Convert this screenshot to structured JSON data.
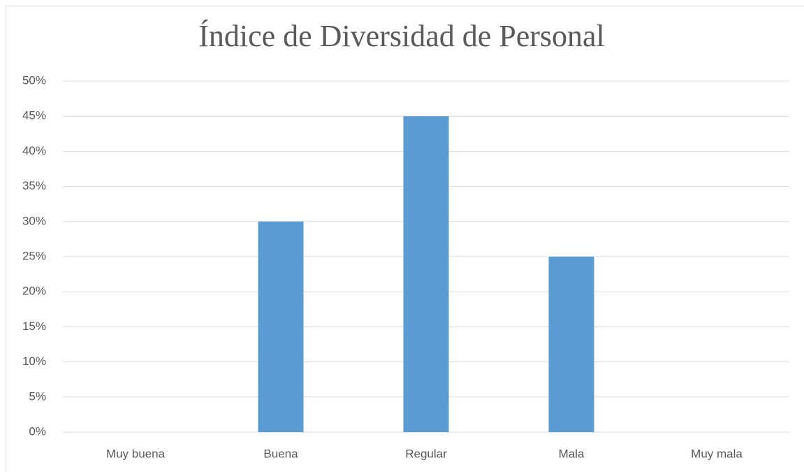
{
  "chart_data": {
    "type": "bar",
    "title": "Índice de Diversidad de Personal",
    "categories": [
      "Muy buena",
      "Buena",
      "Regular",
      "Mala",
      "Muy mala"
    ],
    "values": [
      0,
      30,
      45,
      25,
      0
    ],
    "color": "#5b9bd5",
    "ylim": [
      0,
      50
    ],
    "yticks": [
      {
        "value": 0,
        "label": "0%"
      },
      {
        "value": 5,
        "label": "5%"
      },
      {
        "value": 10,
        "label": "10%"
      },
      {
        "value": 15,
        "label": "15%"
      },
      {
        "value": 20,
        "label": "20%"
      },
      {
        "value": 25,
        "label": "25%"
      },
      {
        "value": 30,
        "label": "30%"
      },
      {
        "value": 35,
        "label": "35%"
      },
      {
        "value": 40,
        "label": "40%"
      },
      {
        "value": 45,
        "label": "45%"
      },
      {
        "value": 50,
        "label": "50%"
      }
    ],
    "grid": true
  }
}
